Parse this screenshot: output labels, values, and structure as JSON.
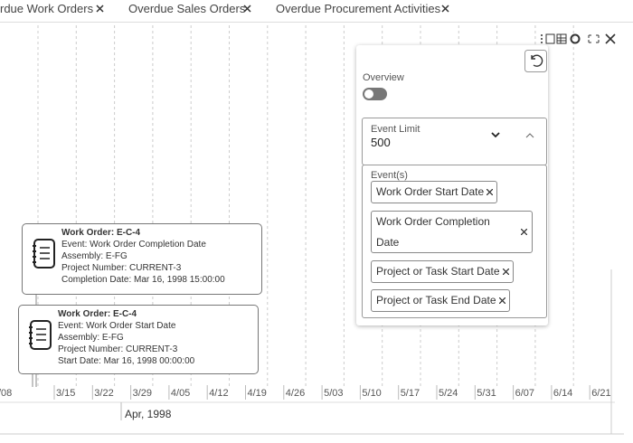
{
  "tabs": [
    {
      "label": "rdue Work Orders"
    },
    {
      "label": "Overdue Sales Orders"
    },
    {
      "label": "Overdue Procurement Activities"
    }
  ],
  "timeline": {
    "ticks": [
      "/08",
      "3/15",
      "3/22",
      "3/29",
      "4/05",
      "4/12",
      "4/19",
      "4/26",
      "5/03",
      "5/10",
      "5/17",
      "5/24",
      "5/31",
      "6/07",
      "6/14",
      "6/21"
    ],
    "month": "Apr, 1998"
  },
  "cards": [
    {
      "title": "Work Order: E-C-4",
      "lines": [
        "Event: Work Order Completion Date",
        "Assembly: E-FG",
        "Project Number: CURRENT-3",
        "Completion Date: Mar 16, 1998 15:00:00"
      ]
    },
    {
      "title": "Work Order: E-C-4",
      "lines": [
        "Event: Work Order Start Date",
        "Assembly: E-FG",
        "Project Number: CURRENT-3",
        "Start Date: Mar 16, 1998 00:00:00"
      ]
    }
  ],
  "settings": {
    "overview": "Overview",
    "event_limit": {
      "label": "Event Limit",
      "value": 500
    },
    "events": {
      "label": "Event(s)",
      "chips": [
        "Work Order Start Date",
        "Work Order Completion Date",
        "Project or Task Start Date",
        "Project or Task End Date"
      ]
    }
  }
}
